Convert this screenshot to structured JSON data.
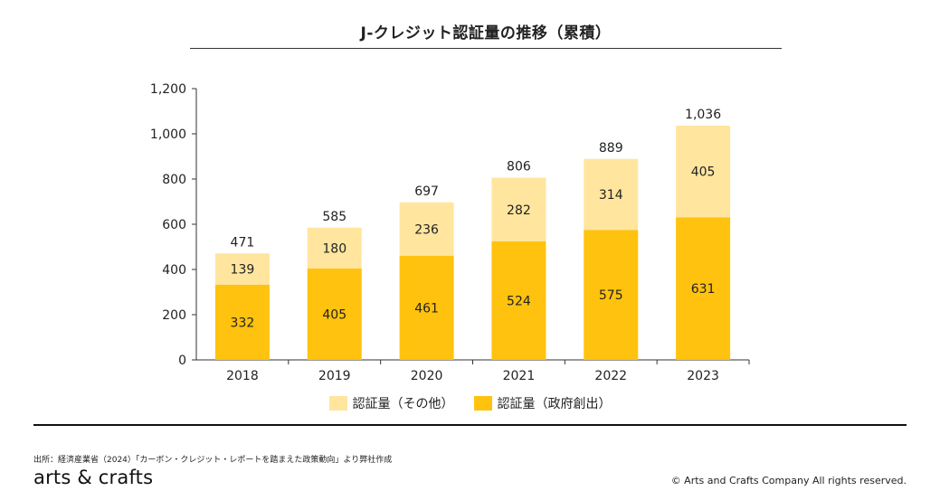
{
  "title": "J-クレジット認証量の推移（累積）",
  "source": "出所：経済産業省（2024）「カーボン・クレジット・レポートを踏まえた政策動向」より弊社作成",
  "logo_text": "arts & crafts",
  "copyright": "© Arts and Crafts Company All rights reserved.",
  "colors": {
    "light": "#FFE59E",
    "dark": "#FFC20E",
    "axis": "#333333"
  },
  "chart_data": {
    "type": "bar",
    "stacked": true,
    "categories": [
      "2018",
      "2019",
      "2020",
      "2021",
      "2022",
      "2023"
    ],
    "series": [
      {
        "name": "認証量（政府創出）",
        "values": [
          332,
          405,
          461,
          524,
          575,
          631
        ]
      },
      {
        "name": "認証量（その他）",
        "values": [
          139,
          180,
          236,
          282,
          314,
          405
        ]
      }
    ],
    "totals": [
      "471",
      "585",
      "697",
      "806",
      "889",
      "1,036"
    ],
    "yticks": [
      "0",
      "200",
      "400",
      "600",
      "800",
      "1,000",
      "1,200"
    ],
    "ylim": [
      0,
      1200
    ],
    "legend_position": "bottom"
  },
  "legend": [
    {
      "label": "認証量（その他）",
      "color": "#FFE59E"
    },
    {
      "label": "認証量（政府創出）",
      "color": "#FFC20E"
    }
  ]
}
